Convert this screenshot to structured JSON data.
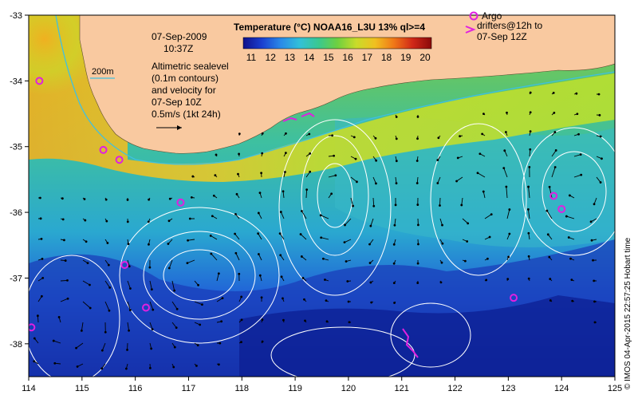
{
  "map": {
    "lon_range": [
      114,
      125
    ],
    "lat_range": [
      -38.5,
      -33
    ],
    "lon_ticks": [
      "114",
      "115",
      "116",
      "117",
      "118",
      "119",
      "120",
      "121",
      "122",
      "123",
      "124",
      "125"
    ],
    "lat_ticks": [
      "-33",
      "-34",
      "-35",
      "-36",
      "-37",
      "-38"
    ]
  },
  "colorbar": {
    "title": "Temperature (°C) NOAA16_L3U 13% ql>=4",
    "ticks": [
      "11",
      "12",
      "13",
      "14",
      "15",
      "16",
      "17",
      "18",
      "19",
      "20"
    ],
    "colors": [
      "#10108a",
      "#1a3fd0",
      "#2a8ae8",
      "#32c0d8",
      "#3ac890",
      "#6ed040",
      "#c8dc2a",
      "#f0c020",
      "#f07818",
      "#d02818",
      "#8a0a0a"
    ]
  },
  "annotations": {
    "date": "07-Sep-2009",
    "time": "10:37Z",
    "contour_label": "200m",
    "sealevel_lines": [
      "Altimetric sealevel",
      "(0.1m contours)",
      "and velocity for",
      "07-Sep 10Z",
      "0.5m/s (1kt 24h)"
    ],
    "legend_argo": "Argo",
    "legend_drifters": [
      "drifters@12h to",
      "07-Sep 12Z"
    ]
  },
  "credit": "© IMOS 04-Apr-2015 22:57:25 Hobart time",
  "colors": {
    "land": "#f9c9a0",
    "argo": "#e020e0",
    "contour": "#ffffff",
    "isobath": "#40c0e0",
    "arrow": "#000000"
  },
  "argo_floats": [
    {
      "lon": 114.2,
      "lat": -34.0
    },
    {
      "lon": 115.4,
      "lat": -35.05
    },
    {
      "lon": 115.7,
      "lat": -35.2
    },
    {
      "lon": 116.85,
      "lat": -35.85
    },
    {
      "lon": 115.8,
      "lat": -36.8
    },
    {
      "lon": 116.2,
      "lat": -37.45
    },
    {
      "lon": 114.05,
      "lat": -37.75
    },
    {
      "lon": 123.1,
      "lat": -37.3
    },
    {
      "lon": 123.85,
      "lat": -35.75
    },
    {
      "lon": 124.0,
      "lat": -35.95
    }
  ]
}
